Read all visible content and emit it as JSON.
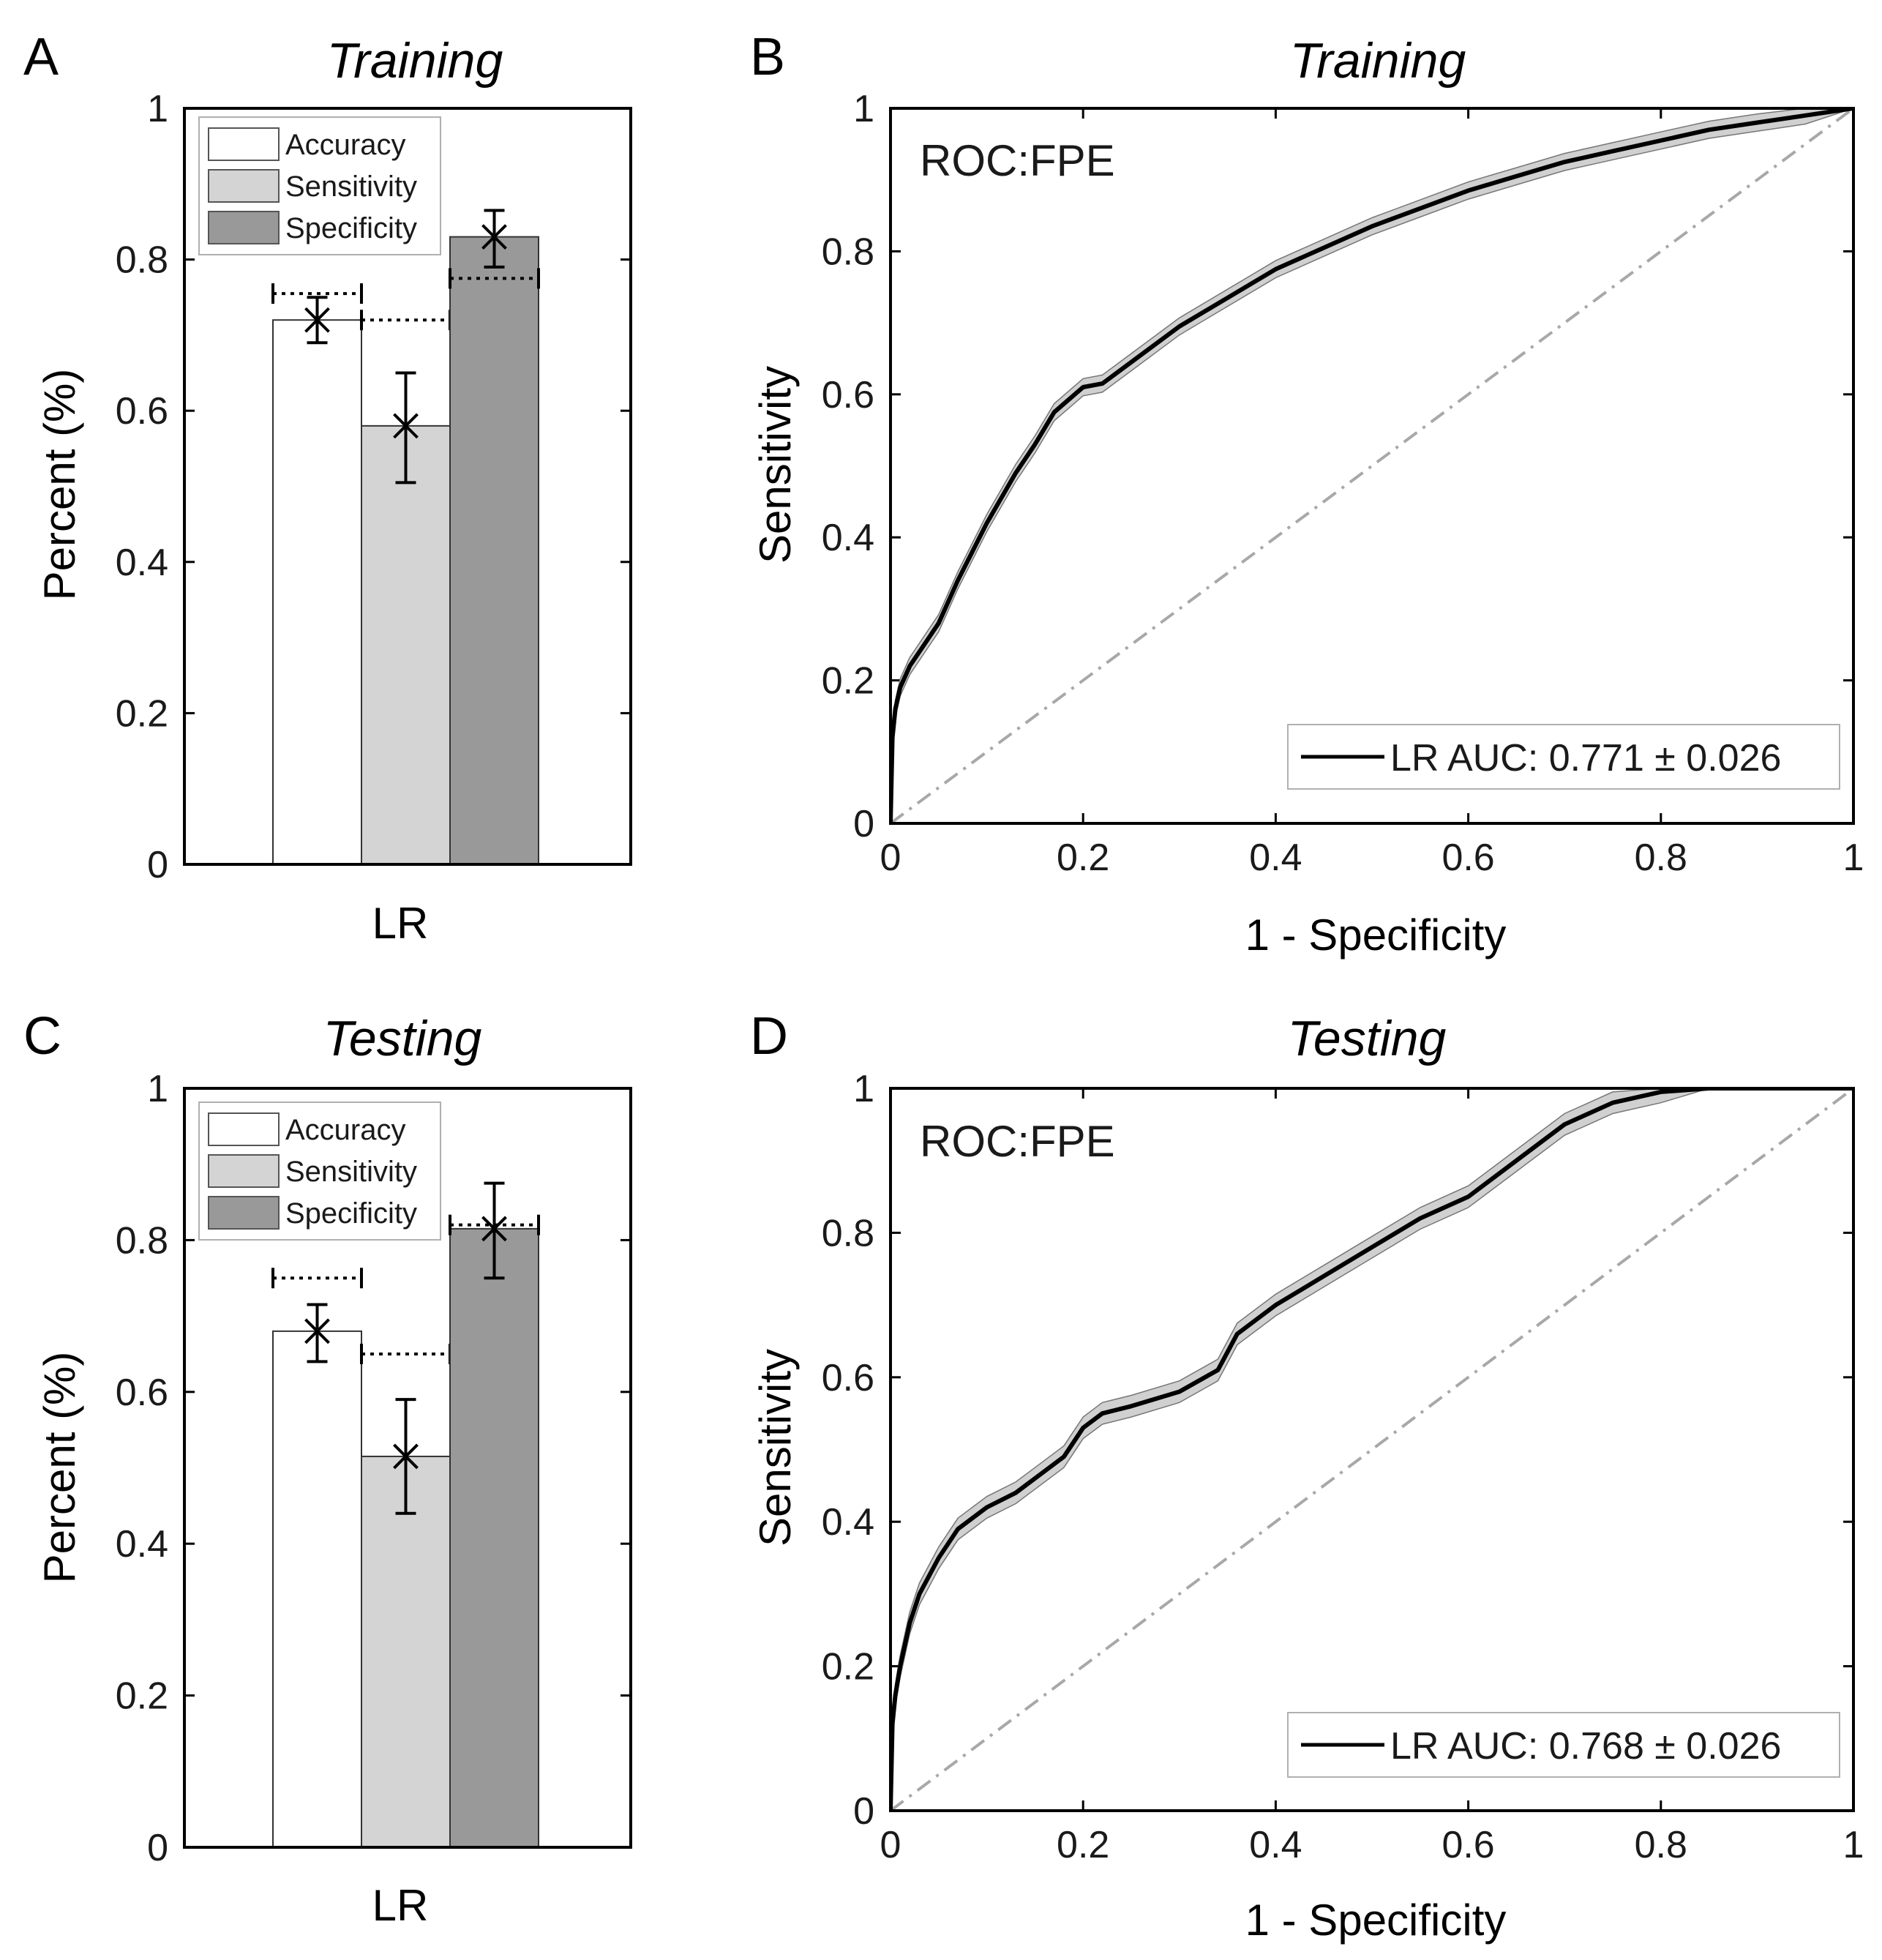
{
  "chart_data": [
    {
      "type": "bar",
      "panel_label": "A",
      "title": "Training",
      "categories": [
        "LR"
      ],
      "ylabel": "Percent (%)",
      "ylim": [
        0,
        1
      ],
      "yticks": [
        "0",
        "0.2",
        "0.4",
        "0.6",
        "0.8",
        "1"
      ],
      "legend_position": "top-left",
      "series": [
        {
          "name": "Accuracy",
          "color": "#ffffff",
          "value": 0.72,
          "err_low": 0.69,
          "err_high": 0.75,
          "ref": 0.755
        },
        {
          "name": "Sensitivity",
          "color": "#d4d4d4",
          "value": 0.58,
          "err_low": 0.505,
          "err_high": 0.65,
          "ref": 0.72
        },
        {
          "name": "Specificity",
          "color": "#999999",
          "value": 0.83,
          "err_low": 0.79,
          "err_high": 0.865,
          "ref": 0.775
        }
      ]
    },
    {
      "type": "line",
      "panel_label": "B",
      "title": "Training",
      "annotation": "ROC:FPE",
      "xlabel": "1 - Specificity",
      "ylabel": "Sensitivity",
      "xlim": [
        0,
        1
      ],
      "ylim": [
        0,
        1
      ],
      "xticks": [
        "0",
        "0.2",
        "0.4",
        "0.6",
        "0.8",
        "1"
      ],
      "yticks": [
        "0",
        "0.2",
        "0.4",
        "0.6",
        "0.8",
        "1"
      ],
      "legend_position": "bottom-right",
      "reference_line": "diagonal dashed",
      "series": [
        {
          "name": "LR AUC: 0.771 ± 0.026",
          "band": 0.012,
          "x": [
            0,
            0.002,
            0.005,
            0.01,
            0.02,
            0.03,
            0.05,
            0.07,
            0.1,
            0.13,
            0.15,
            0.17,
            0.2,
            0.22,
            0.25,
            0.3,
            0.35,
            0.4,
            0.45,
            0.5,
            0.55,
            0.6,
            0.65,
            0.7,
            0.75,
            0.8,
            0.85,
            0.9,
            0.95,
            1
          ],
          "y": [
            0,
            0.12,
            0.16,
            0.19,
            0.22,
            0.24,
            0.28,
            0.34,
            0.42,
            0.49,
            0.53,
            0.575,
            0.61,
            0.615,
            0.645,
            0.695,
            0.735,
            0.775,
            0.805,
            0.835,
            0.86,
            0.885,
            0.905,
            0.925,
            0.94,
            0.955,
            0.97,
            0.98,
            0.99,
            1
          ]
        }
      ]
    },
    {
      "type": "bar",
      "panel_label": "C",
      "title": "Testing",
      "categories": [
        "LR"
      ],
      "ylabel": "Percent (%)",
      "ylim": [
        0,
        1
      ],
      "yticks": [
        "0",
        "0.2",
        "0.4",
        "0.6",
        "0.8",
        "1"
      ],
      "legend_position": "top-left",
      "series": [
        {
          "name": "Accuracy",
          "color": "#ffffff",
          "value": 0.68,
          "err_low": 0.64,
          "err_high": 0.715,
          "ref": 0.75
        },
        {
          "name": "Sensitivity",
          "color": "#d4d4d4",
          "value": 0.515,
          "err_low": 0.44,
          "err_high": 0.59,
          "ref": 0.65
        },
        {
          "name": "Specificity",
          "color": "#999999",
          "value": 0.815,
          "err_low": 0.75,
          "err_high": 0.875,
          "ref": 0.82
        }
      ]
    },
    {
      "type": "line",
      "panel_label": "D",
      "title": "Testing",
      "annotation": "ROC:FPE",
      "xlabel": "1 - Specificity",
      "ylabel": "Sensitivity",
      "xlim": [
        0,
        1
      ],
      "ylim": [
        0,
        1
      ],
      "xticks": [
        "0",
        "0.2",
        "0.4",
        "0.6",
        "0.8",
        "1"
      ],
      "yticks": [
        "0",
        "0.2",
        "0.4",
        "0.6",
        "0.8",
        "1"
      ],
      "legend_position": "bottom-right",
      "reference_line": "diagonal dashed",
      "series": [
        {
          "name": "LR AUC: 0.768 ± 0.026",
          "band": 0.015,
          "x": [
            0,
            0.002,
            0.005,
            0.01,
            0.02,
            0.03,
            0.05,
            0.07,
            0.1,
            0.13,
            0.15,
            0.18,
            0.2,
            0.22,
            0.25,
            0.3,
            0.34,
            0.36,
            0.4,
            0.45,
            0.5,
            0.55,
            0.6,
            0.62,
            0.65,
            0.7,
            0.75,
            0.8,
            0.85,
            0.9,
            1
          ],
          "y": [
            0,
            0.12,
            0.16,
            0.2,
            0.26,
            0.3,
            0.35,
            0.39,
            0.42,
            0.44,
            0.46,
            0.49,
            0.53,
            0.55,
            0.56,
            0.58,
            0.61,
            0.66,
            0.7,
            0.74,
            0.78,
            0.82,
            0.85,
            0.87,
            0.9,
            0.95,
            0.98,
            0.995,
            1,
            1,
            1
          ]
        }
      ]
    }
  ]
}
